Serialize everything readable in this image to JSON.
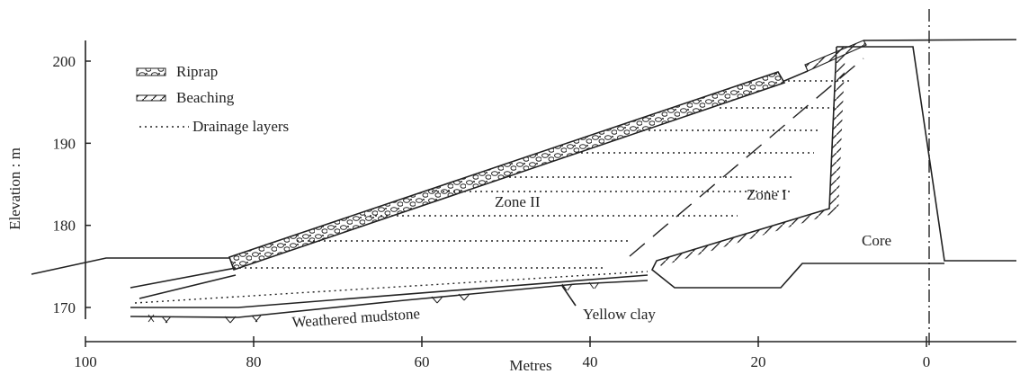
{
  "axes": {
    "y_label": "Elevation : m",
    "y_ticks": [
      200,
      190,
      180,
      170
    ],
    "x_label": "Metres",
    "x_ticks": [
      100,
      80,
      60,
      40,
      20,
      0
    ]
  },
  "legend": [
    "Riprap",
    "Beaching",
    "Drainage layers"
  ],
  "labels": {
    "zone_2": "Zone II",
    "zone_1": "Zone I",
    "core": "Core",
    "mudstone": "Weathered mudstone",
    "clay": "Yellow clay"
  }
}
